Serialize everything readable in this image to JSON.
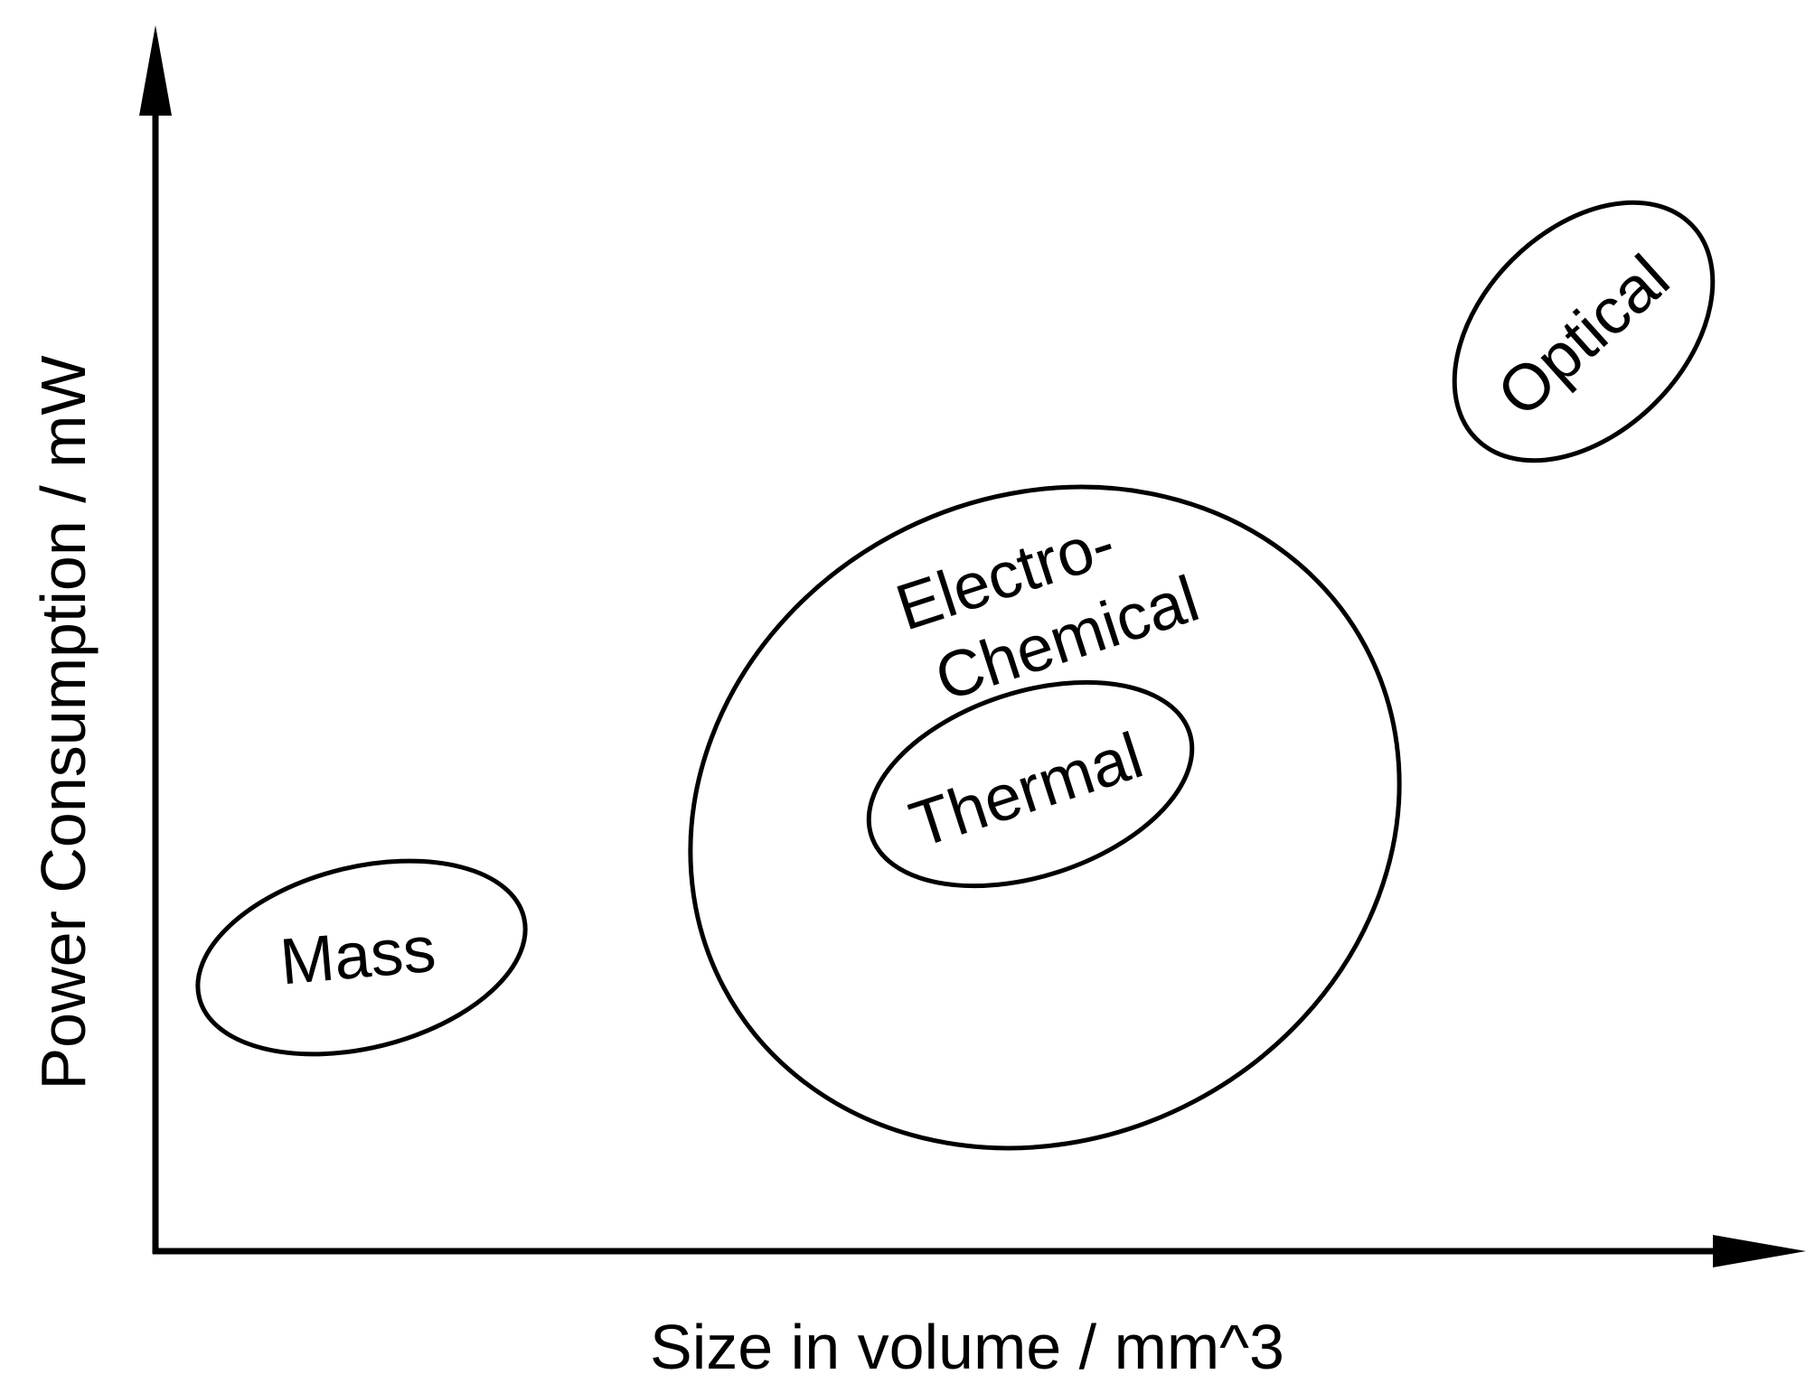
{
  "axes": {
    "x_label": "Size in volume / mm^3",
    "y_label": "Power Consumption / mW"
  },
  "regions": {
    "mass": "Mass",
    "electro_chemical_line1": "Electro-",
    "electro_chemical_line2": "Chemical",
    "thermal": "Thermal",
    "optical": "Optical"
  },
  "colors": {
    "stroke": "#000000",
    "background": "#ffffff"
  }
}
